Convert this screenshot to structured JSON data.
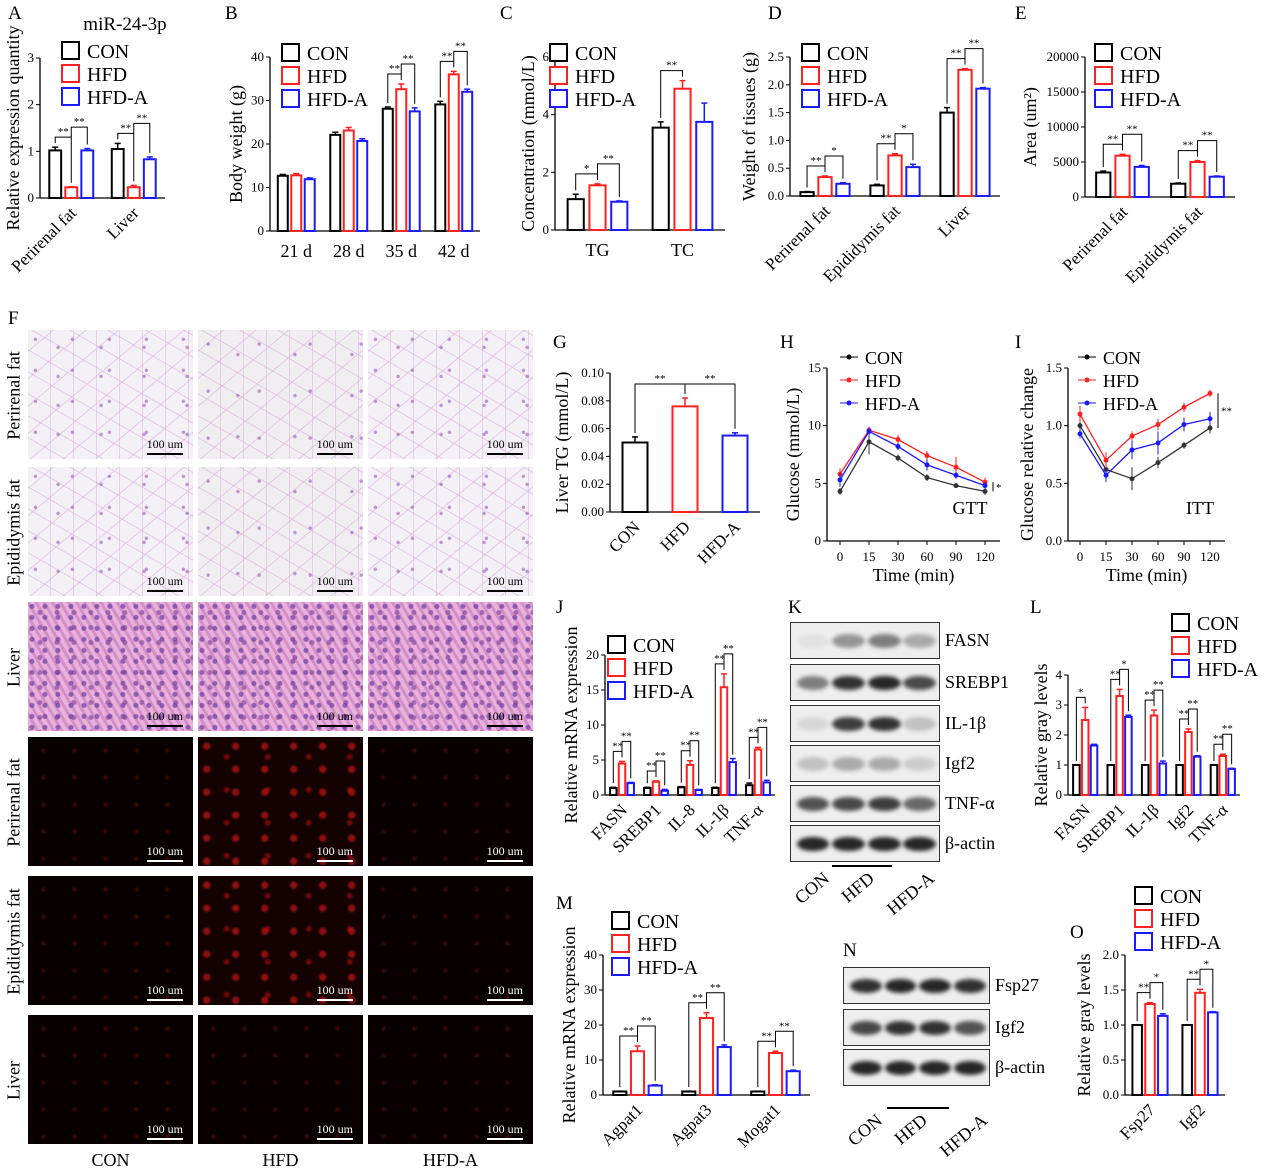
{
  "panel_letters": [
    "A",
    "B",
    "C",
    "D",
    "E",
    "F",
    "G",
    "H",
    "I",
    "J",
    "K",
    "L",
    "M",
    "N",
    "O"
  ],
  "histology": {
    "row_labels": [
      "Perirenal fat",
      "Epididymis fat",
      "Liver",
      "Perirenal fat",
      "Epididymis fat",
      "Liver"
    ],
    "column_labels": [
      "CON",
      "HFD",
      "HFD-A"
    ],
    "scale_bar": "100 um"
  },
  "blot_K": {
    "bands": [
      "FASN",
      "SREBP1",
      "IL-1β",
      "Igf2",
      "TNF-α",
      "β-actin"
    ],
    "lanes": [
      "CON",
      "HFD",
      "HFD-A"
    ]
  },
  "blot_N": {
    "bands": [
      "Fsp27",
      "Igf2",
      "β-actin"
    ],
    "lanes": [
      "CON",
      "HFD",
      "HFD-A"
    ]
  },
  "colors": {
    "CON": "#000000",
    "HFD": "#ff2020",
    "HFD-A": "#1a1aff"
  },
  "chart_data": [
    {
      "id": "A",
      "type": "bar",
      "title": "miR-24-3p",
      "ylabel": "Relative expression quantity",
      "xlabel": "",
      "categories": [
        "Perirenal fat",
        "Liver"
      ],
      "ylim": [
        0,
        3
      ],
      "yticks": [
        "0",
        "1",
        "2",
        "3"
      ],
      "series": [
        {
          "name": "CON",
          "values": [
            1.02,
            1.05
          ],
          "errors": [
            0.07,
            0.12
          ]
        },
        {
          "name": "HFD",
          "values": [
            0.23,
            0.23
          ],
          "errors": [
            0.01,
            0.04
          ]
        },
        {
          "name": "HFD-A",
          "values": [
            1.02,
            0.83
          ],
          "errors": [
            0.04,
            0.05
          ]
        }
      ],
      "sig": [
        [
          "**",
          "**"
        ],
        [
          "**",
          "**"
        ]
      ]
    },
    {
      "id": "B",
      "type": "bar",
      "title": "",
      "ylabel": "Body weight (g)",
      "xlabel": "",
      "categories": [
        "21 d",
        "28 d",
        "35 d",
        "42 d"
      ],
      "ylim": [
        0,
        40
      ],
      "yticks": [
        "0",
        "10",
        "20",
        "30",
        "40"
      ],
      "series": [
        {
          "name": "CON",
          "values": [
            12.7,
            22.1,
            28.1,
            29.1
          ],
          "errors": [
            0.3,
            0.6,
            0.4,
            0.7
          ]
        },
        {
          "name": "HFD",
          "values": [
            12.8,
            23.1,
            32.6,
            36.0
          ],
          "errors": [
            0.4,
            0.7,
            1.2,
            0.7
          ]
        },
        {
          "name": "HFD-A",
          "values": [
            11.9,
            20.7,
            27.5,
            32.0
          ],
          "errors": [
            0.3,
            0.5,
            0.8,
            0.6
          ]
        }
      ],
      "sig": [
        null,
        null,
        [
          "**",
          "**"
        ],
        [
          "**",
          "**"
        ]
      ]
    },
    {
      "id": "C",
      "type": "bar",
      "title": "",
      "ylabel": "Concentration (mmol/L)",
      "xlabel": "",
      "categories": [
        "TG",
        "TC"
      ],
      "ylim": [
        0,
        6
      ],
      "yticks": [
        "0",
        "2",
        "4",
        "6"
      ],
      "series": [
        {
          "name": "CON",
          "values": [
            1.07,
            3.55
          ],
          "errors": [
            0.17,
            0.2
          ]
        },
        {
          "name": "HFD",
          "values": [
            1.55,
            4.9
          ],
          "errors": [
            0.05,
            0.28
          ]
        },
        {
          "name": "HFD-A",
          "values": [
            0.98,
            3.75
          ],
          "errors": [
            0.03,
            0.65
          ]
        }
      ],
      "sig": [
        [
          "*",
          "**"
        ],
        [
          "**",
          null
        ]
      ]
    },
    {
      "id": "D",
      "type": "bar",
      "title": "",
      "ylabel": "Weight of tissues (g)",
      "xlabel": "",
      "categories": [
        "Perirenal fat",
        "Epididymis fat",
        "Liver"
      ],
      "ylim": [
        0,
        2.5
      ],
      "yticks": [
        "0.0",
        "0.5",
        "1.0",
        "1.5",
        "2.0",
        "2.5"
      ],
      "series": [
        {
          "name": "CON",
          "values": [
            0.07,
            0.19,
            1.5
          ],
          "errors": [
            0.01,
            0.02,
            0.09
          ]
        },
        {
          "name": "HFD",
          "values": [
            0.34,
            0.73,
            2.27
          ],
          "errors": [
            0.02,
            0.03,
            0.02
          ]
        },
        {
          "name": "HFD-A",
          "values": [
            0.22,
            0.52,
            1.93
          ],
          "errors": [
            0.02,
            0.05,
            0.02
          ]
        }
      ],
      "sig": [
        [
          "**",
          "*"
        ],
        [
          "**",
          "*"
        ],
        [
          "**",
          "**"
        ]
      ]
    },
    {
      "id": "E",
      "type": "bar",
      "title": "",
      "ylabel": "Area (um²)",
      "xlabel": "",
      "categories": [
        "Perirenal fat",
        "Epididymis fat"
      ],
      "ylim": [
        0,
        20000
      ],
      "yticks": [
        "0",
        "5000",
        "10000",
        "15000",
        "20000"
      ],
      "series": [
        {
          "name": "CON",
          "values": [
            3500,
            1900
          ],
          "errors": [
            200,
            100
          ]
        },
        {
          "name": "HFD",
          "values": [
            5900,
            5000
          ],
          "errors": [
            200,
            200
          ]
        },
        {
          "name": "HFD-A",
          "values": [
            4300,
            2900
          ],
          "errors": [
            200,
            100
          ]
        }
      ],
      "sig": [
        [
          "**",
          "**"
        ],
        [
          "**",
          "**"
        ]
      ]
    },
    {
      "id": "G",
      "type": "bar",
      "title": "",
      "ylabel": "Liver TG (mmol/L)",
      "xlabel": "",
      "categories": [
        "CON",
        "HFD",
        "HFD-A"
      ],
      "ylim": [
        0,
        0.1
      ],
      "yticks": [
        "0.00",
        "0.02",
        "0.04",
        "0.06",
        "0.08",
        "0.10"
      ],
      "series": [
        {
          "name": "Liver TG",
          "values": [
            0.05,
            0.076,
            0.055
          ],
          "errors": [
            0.004,
            0.006,
            0.002
          ]
        }
      ],
      "sig": [
        [
          "**",
          "**"
        ]
      ]
    },
    {
      "id": "H",
      "type": "line",
      "title": "GTT",
      "ylabel": "Glucose (mmol/L)",
      "xlabel": "Time (min)",
      "x": [
        "0",
        "15",
        "30",
        "60",
        "90",
        "120"
      ],
      "ylim": [
        0,
        15
      ],
      "yticks": [
        "0",
        "5",
        "10",
        "15"
      ],
      "series": [
        {
          "name": "CON",
          "values": [
            4.3,
            8.6,
            7.2,
            5.5,
            4.8,
            4.3
          ],
          "errors": [
            0.3,
            1.1,
            0.3,
            0.3,
            0.2,
            0.3
          ]
        },
        {
          "name": "HFD",
          "values": [
            5.8,
            9.6,
            8.8,
            7.4,
            6.4,
            5.1
          ],
          "errors": [
            0.5,
            0.3,
            0.4,
            0.4,
            0.9,
            0.4
          ]
        },
        {
          "name": "HFD-A",
          "values": [
            5.3,
            9.5,
            8.2,
            6.6,
            5.7,
            4.8
          ],
          "errors": [
            0.6,
            0.4,
            0.3,
            0.5,
            0.3,
            0.3
          ]
        }
      ],
      "sig_label": "*"
    },
    {
      "id": "I",
      "type": "line",
      "title": "ITT",
      "ylabel": "Glucose relative change",
      "xlabel": "Time (min)",
      "x": [
        "0",
        "15",
        "30",
        "60",
        "90",
        "120"
      ],
      "ylim": [
        0,
        1.5
      ],
      "yticks": [
        "0.0",
        "0.5",
        "1.0",
        "1.5"
      ],
      "series": [
        {
          "name": "CON",
          "values": [
            1.0,
            0.62,
            0.54,
            0.68,
            0.83,
            0.98
          ],
          "errors": [
            0.08,
            0.08,
            0.1,
            0.05,
            0.03,
            0.05
          ]
        },
        {
          "name": "HFD",
          "values": [
            1.1,
            0.7,
            0.91,
            1.01,
            1.16,
            1.28
          ],
          "errors": [
            0.07,
            0.07,
            0.04,
            0.05,
            0.04,
            0.03
          ]
        },
        {
          "name": "HFD-A",
          "values": [
            0.93,
            0.57,
            0.79,
            0.85,
            1.01,
            1.06
          ],
          "errors": [
            0.04,
            0.06,
            0.08,
            0.1,
            0.06,
            0.06
          ]
        }
      ],
      "sig_label": "**"
    },
    {
      "id": "J",
      "type": "bar",
      "title": "",
      "ylabel": "Relative mRNA expression",
      "xlabel": "",
      "categories": [
        "FASN",
        "SREBP1",
        "IL-8",
        "IL-1β",
        "TNF-α"
      ],
      "ylim": [
        0,
        20
      ],
      "yticks": [
        "0",
        "5",
        "10",
        "15",
        "20"
      ],
      "series": [
        {
          "name": "CON",
          "values": [
            1,
            1,
            1.1,
            1,
            1.4
          ],
          "errors": [
            0.1,
            0.1,
            0.1,
            0.1,
            0.3
          ]
        },
        {
          "name": "HFD",
          "values": [
            4.5,
            1.9,
            4.3,
            15.4,
            6.5
          ],
          "errors": [
            0.3,
            0.1,
            0.6,
            1.9,
            0.3
          ]
        },
        {
          "name": "HFD-A",
          "values": [
            1.7,
            0.6,
            0.7,
            4.7,
            1.8
          ],
          "errors": [
            0.1,
            0.2,
            0.1,
            0.5,
            0.3
          ]
        }
      ],
      "sig": [
        [
          "**",
          "**"
        ],
        [
          "**",
          "**"
        ],
        [
          "**",
          "**"
        ],
        [
          "**",
          "**"
        ],
        [
          "**",
          "**"
        ]
      ]
    },
    {
      "id": "L",
      "type": "bar",
      "title": "",
      "ylabel": "Relative gray levels",
      "xlabel": "",
      "categories": [
        "FASN",
        "SREBP1",
        "IL-1β",
        "Igf2",
        "TNF-α"
      ],
      "ylim": [
        0,
        4
      ],
      "yticks": [
        "0",
        "1",
        "2",
        "3",
        "4"
      ],
      "series": [
        {
          "name": "CON",
          "values": [
            1,
            1,
            1,
            1,
            1
          ],
          "errors": [
            0,
            0,
            0,
            0,
            0
          ]
        },
        {
          "name": "HFD",
          "values": [
            2.5,
            3.3,
            2.65,
            2.1,
            1.3
          ],
          "errors": [
            0.42,
            0.22,
            0.18,
            0.1,
            0.06
          ]
        },
        {
          "name": "HFD-A",
          "values": [
            1.65,
            2.6,
            1.05,
            1.28,
            0.87
          ],
          "errors": [
            0.04,
            0.06,
            0.08,
            0.03,
            0.02
          ]
        }
      ],
      "sig": [
        [
          "*",
          null
        ],
        [
          "**",
          "*"
        ],
        [
          "**",
          "**"
        ],
        [
          "**",
          "**"
        ],
        [
          "**",
          "**"
        ]
      ]
    },
    {
      "id": "M",
      "type": "bar",
      "title": "",
      "ylabel": "Relative mRNA expression",
      "xlabel": "",
      "categories": [
        "Agpat1",
        "Agpat3",
        "Mogat1"
      ],
      "ylim": [
        0,
        40
      ],
      "yticks": [
        "0",
        "10",
        "20",
        "30",
        "40"
      ],
      "series": [
        {
          "name": "CON",
          "values": [
            1,
            1,
            1
          ],
          "errors": [
            0.1,
            0.1,
            0.1
          ]
        },
        {
          "name": "HFD",
          "values": [
            12.5,
            22,
            12
          ],
          "errors": [
            1.5,
            1.5,
            0.5
          ]
        },
        {
          "name": "HFD-A",
          "values": [
            2.7,
            13.7,
            6.8
          ],
          "errors": [
            0.2,
            0.6,
            0.3
          ]
        }
      ],
      "sig": [
        [
          "**",
          "**"
        ],
        [
          "**",
          "**"
        ],
        [
          "**",
          "**"
        ]
      ]
    },
    {
      "id": "O",
      "type": "bar",
      "title": "",
      "ylabel": "Relative gray levels",
      "xlabel": "",
      "categories": [
        "Fsp27",
        "Igf2"
      ],
      "ylim": [
        0,
        2
      ],
      "yticks": [
        "0.0",
        "0.5",
        "1.0",
        "1.5",
        "2.0"
      ],
      "series": [
        {
          "name": "CON",
          "values": [
            1,
            1
          ],
          "errors": [
            0,
            0
          ]
        },
        {
          "name": "HFD",
          "values": [
            1.3,
            1.46
          ],
          "errors": [
            0.02,
            0.05
          ]
        },
        {
          "name": "HFD-A",
          "values": [
            1.13,
            1.18
          ],
          "errors": [
            0.03,
            0.01
          ]
        }
      ],
      "sig": [
        [
          "**",
          "*"
        ],
        [
          "**",
          "*"
        ]
      ]
    }
  ]
}
